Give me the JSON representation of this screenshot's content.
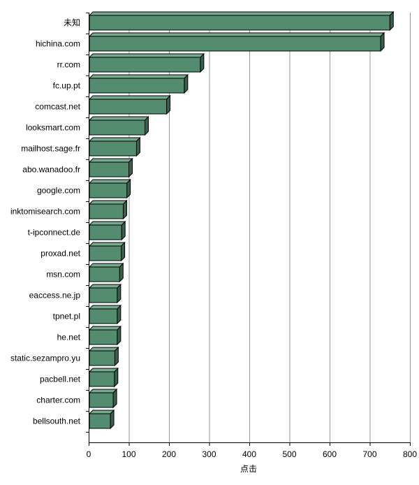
{
  "chart_data": {
    "type": "bar",
    "orientation": "horizontal",
    "categories": [
      "未知",
      "hichina.com",
      "rr.com",
      "fc.up.pt",
      "comcast.net",
      "looksmart.com",
      "mailhost.sage.fr",
      "abo.wanadoo.fr",
      "google.com",
      "inktomisearch.com",
      "t-ipconnect.de",
      "proxad.net",
      "msn.com",
      "eaccess.ne.jp",
      "tpnet.pl",
      "he.net",
      "static.sezampro.yu",
      "pacbell.net",
      "charter.com",
      "bellsouth.net"
    ],
    "values": [
      750,
      727,
      278,
      238,
      194,
      140,
      119,
      100,
      95,
      86,
      82,
      81,
      77,
      71,
      71,
      71,
      65,
      64,
      61,
      54
    ],
    "title": "",
    "xlabel": "点击",
    "ylabel": "",
    "xlim": [
      0,
      800
    ],
    "xticks": [
      0,
      100,
      200,
      300,
      400,
      500,
      600,
      700,
      800
    ],
    "grid": true,
    "legend": "none",
    "colors": {
      "bar_front": "#548c70",
      "bar_top": "#78a98f",
      "bar_side": "#38604c",
      "bar_stroke": "#000000",
      "grid": "#999999",
      "axis": "#000000"
    }
  }
}
